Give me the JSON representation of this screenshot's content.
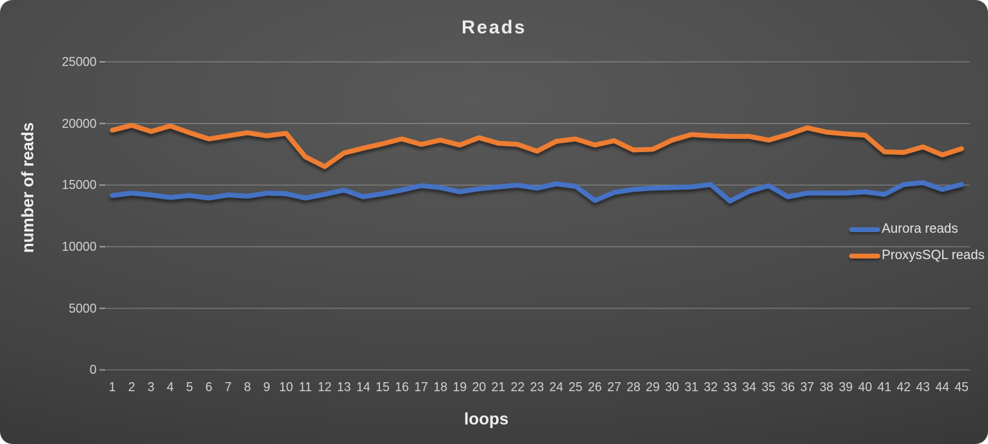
{
  "chart_data": {
    "type": "line",
    "title": "Reads",
    "xlabel": "loops",
    "ylabel": "number of reads",
    "x": [
      1,
      2,
      3,
      4,
      5,
      6,
      7,
      8,
      9,
      10,
      11,
      12,
      13,
      14,
      15,
      16,
      17,
      18,
      19,
      20,
      21,
      22,
      23,
      24,
      25,
      26,
      27,
      28,
      29,
      30,
      31,
      32,
      33,
      34,
      35,
      36,
      37,
      38,
      39,
      40,
      41,
      42,
      43,
      44,
      45
    ],
    "ylim": [
      0,
      25000
    ],
    "yticks": [
      0,
      5000,
      10000,
      15000,
      20000,
      25000
    ],
    "grid": "horizontal",
    "legend_position": "middle-right",
    "series": [
      {
        "name": "Aurora reads",
        "color": "#4472c4",
        "values": [
          14150,
          14350,
          14200,
          14000,
          14150,
          13950,
          14200,
          14100,
          14350,
          14300,
          13950,
          14250,
          14600,
          14050,
          14300,
          14600,
          14950,
          14800,
          14450,
          14700,
          14850,
          15000,
          14750,
          15100,
          14900,
          13750,
          14400,
          14650,
          14750,
          14800,
          14850,
          15050,
          13700,
          14500,
          14950,
          14050,
          14350,
          14350,
          14350,
          14450,
          14250,
          15050,
          15200,
          14650,
          15050
        ]
      },
      {
        "name": "ProxysSQL reads",
        "color": "#ed7d31",
        "values": [
          19450,
          19850,
          19350,
          19800,
          19250,
          18750,
          19000,
          19250,
          19000,
          19200,
          17300,
          16500,
          17600,
          18000,
          18350,
          18750,
          18300,
          18650,
          18250,
          18850,
          18400,
          18300,
          17750,
          18550,
          18750,
          18250,
          18600,
          17850,
          17900,
          18650,
          19100,
          19000,
          18950,
          18950,
          18650,
          19100,
          19650,
          19300,
          19150,
          19050,
          17700,
          17650,
          18100,
          17450,
          17950
        ]
      }
    ],
    "colors": {
      "background_center": "#4c4c4c",
      "background_edge": "#1e1e1e",
      "gridline": "#787878",
      "text": "#e6e6e6"
    }
  }
}
